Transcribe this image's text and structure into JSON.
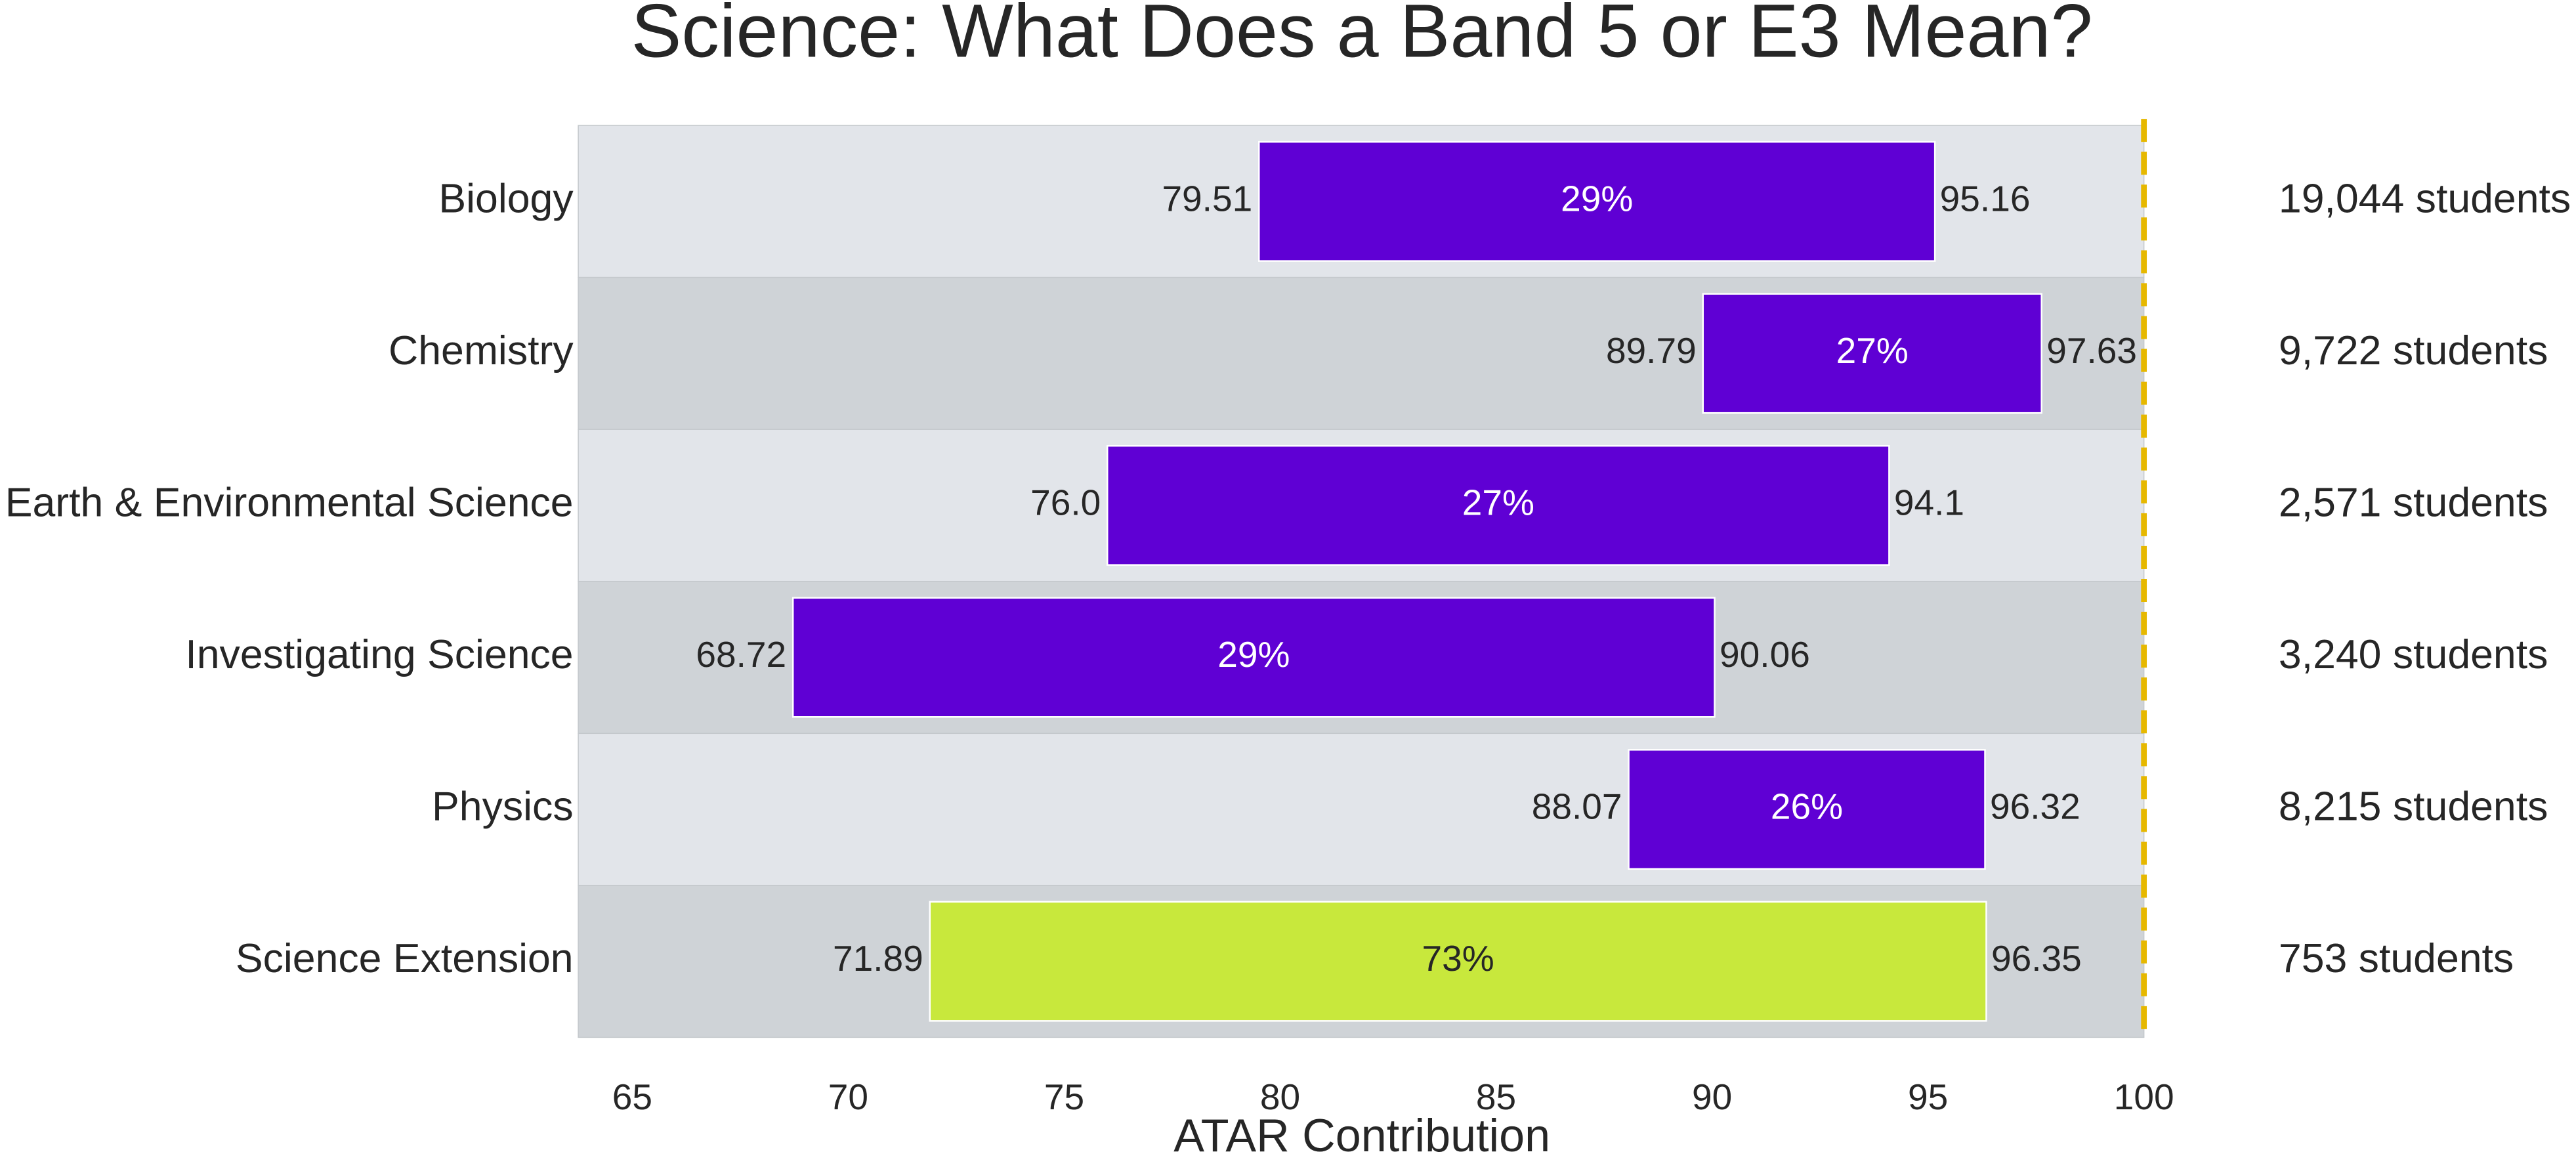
{
  "chart_data": {
    "type": "range_bar",
    "title": "Science: What Does a Band 5 or E3 Mean?",
    "xlabel": "ATAR Contribution",
    "categories": [
      "Biology",
      "Chemistry",
      "Earth & Environmental Science",
      "Investigating Science",
      "Physics",
      "Science Extension"
    ],
    "low": [
      79.51,
      89.79,
      76.0,
      68.72,
      88.07,
      71.89
    ],
    "low_labels": [
      "79.51",
      "89.79",
      "76.0",
      "68.72",
      "88.07",
      "71.89"
    ],
    "high": [
      95.16,
      97.63,
      94.1,
      90.06,
      96.32,
      96.35
    ],
    "high_labels": [
      "95.16",
      "97.63",
      "94.1",
      "90.06",
      "96.32",
      "96.35"
    ],
    "share": [
      29,
      27,
      27,
      29,
      26,
      73
    ],
    "share_labels": [
      "29%",
      "27%",
      "27%",
      "29%",
      "26%",
      "73%"
    ],
    "students": [
      19044,
      9722,
      2571,
      3240,
      8215,
      753
    ],
    "students_labels": [
      "19,044 students",
      "9,722 students",
      "2,571 students",
      "3,240 students",
      "8,215 students",
      "753 students"
    ],
    "colors": [
      "#5f00d4",
      "#5f00d4",
      "#5f00d4",
      "#5f00d4",
      "#5f00d4",
      "#c8e83c"
    ],
    "band_colors": [
      "#e2e5ea",
      "#cfd3d7"
    ],
    "xlim": [
      63.75,
      100
    ],
    "xticks": [
      65,
      70,
      75,
      80,
      85,
      90,
      95,
      100
    ],
    "ref_line": 100,
    "ref_line_color": "#e6b800"
  }
}
